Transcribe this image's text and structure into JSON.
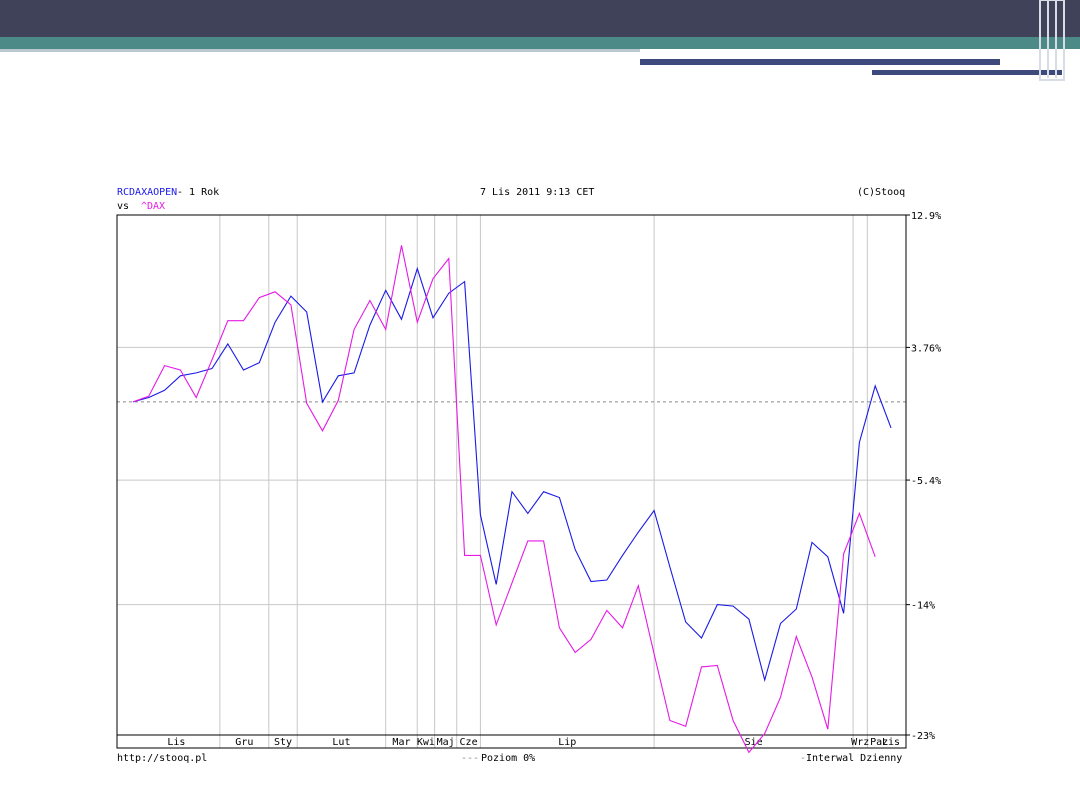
{
  "colors": {
    "banner_dark": "#40425a",
    "banner_teal": "#4b8a86",
    "banner_navy": "#3e4a7c",
    "fund_line": "#1a1ae6",
    "index_line": "#e61ae6",
    "grid": "#c8c8c8",
    "zero_line": "#8a8a8a"
  },
  "header": {
    "symbol": "RCDAXAOPEN",
    "period": " - 1 Rok",
    "vs": "vs ",
    "compare_symbol": "^DAX",
    "datetime": "7 Lis 2011 9:13 CET",
    "copyright": "(C)Stooq"
  },
  "footer": {
    "source": "http://stooq.pl",
    "zero_legend_marker": "---",
    "zero_legend": "Poziom 0%",
    "interval_marker": "-",
    "interval": "Interwal Dzienny"
  },
  "chart_data": {
    "type": "line",
    "title": "RCDAXAOPEN - 1 Rok vs ^DAX",
    "ylim": [
      -23,
      12.9
    ],
    "y_ticks": [
      12.9,
      3.76,
      -5.4,
      -14,
      -23
    ],
    "y_tick_labels": [
      "12.9%",
      "3.76%",
      "-5.4%",
      "-14%",
      "-23%"
    ],
    "x_month_labels": [
      "Lis",
      "Gru",
      "Sty",
      "Lut",
      "Mar",
      "Kwi",
      "Maj",
      "Cze",
      "Lip",
      "Sie",
      "Wrz",
      "Paz",
      "Lis"
    ],
    "reference_line": 0,
    "grid": true,
    "series": [
      {
        "name": "RCDAXAOPEN",
        "color": "#1a1ae6",
        "values": [
          0,
          0.3,
          0.8,
          1.8,
          2.0,
          2.3,
          4.0,
          2.2,
          2.7,
          5.5,
          7.3,
          6.2,
          0,
          1.8,
          2.0,
          5.3,
          7.7,
          5.7,
          9.2,
          5.8,
          7.5,
          8.3,
          -7.8,
          -12.6,
          -6.2,
          -7.7,
          -6.2,
          -6.6,
          -10.2,
          -12.4,
          -12.3,
          -10.6,
          -9.0,
          -7.5,
          -11.4,
          -15.2,
          -16.3,
          -14.0,
          -14.1,
          -15.0,
          -19.2,
          -15.3,
          -14.3,
          -9.7,
          -10.7,
          -14.6,
          -2.8,
          1.1,
          -1.8
        ]
      },
      {
        "name": "^DAX",
        "color": "#e61ae6",
        "values": [
          0,
          0.4,
          2.5,
          2.2,
          0.3,
          2.9,
          5.6,
          5.6,
          7.2,
          7.6,
          6.7,
          -0.1,
          -2.0,
          0.1,
          5.0,
          7.0,
          5.0,
          10.8,
          5.5,
          8.5,
          9.9,
          -10.6,
          -10.6,
          -15.4,
          -12.5,
          -9.6,
          -9.6,
          -15.6,
          -17.3,
          -16.4,
          -14.4,
          -15.6,
          -12.7,
          -17.4,
          -22.0,
          -22.4,
          -18.3,
          -18.2,
          -22.0,
          -24.2,
          -22.9,
          -20.4,
          -16.2,
          -19.0,
          -22.6,
          -10.5,
          -7.7,
          -10.7
        ]
      }
    ]
  }
}
